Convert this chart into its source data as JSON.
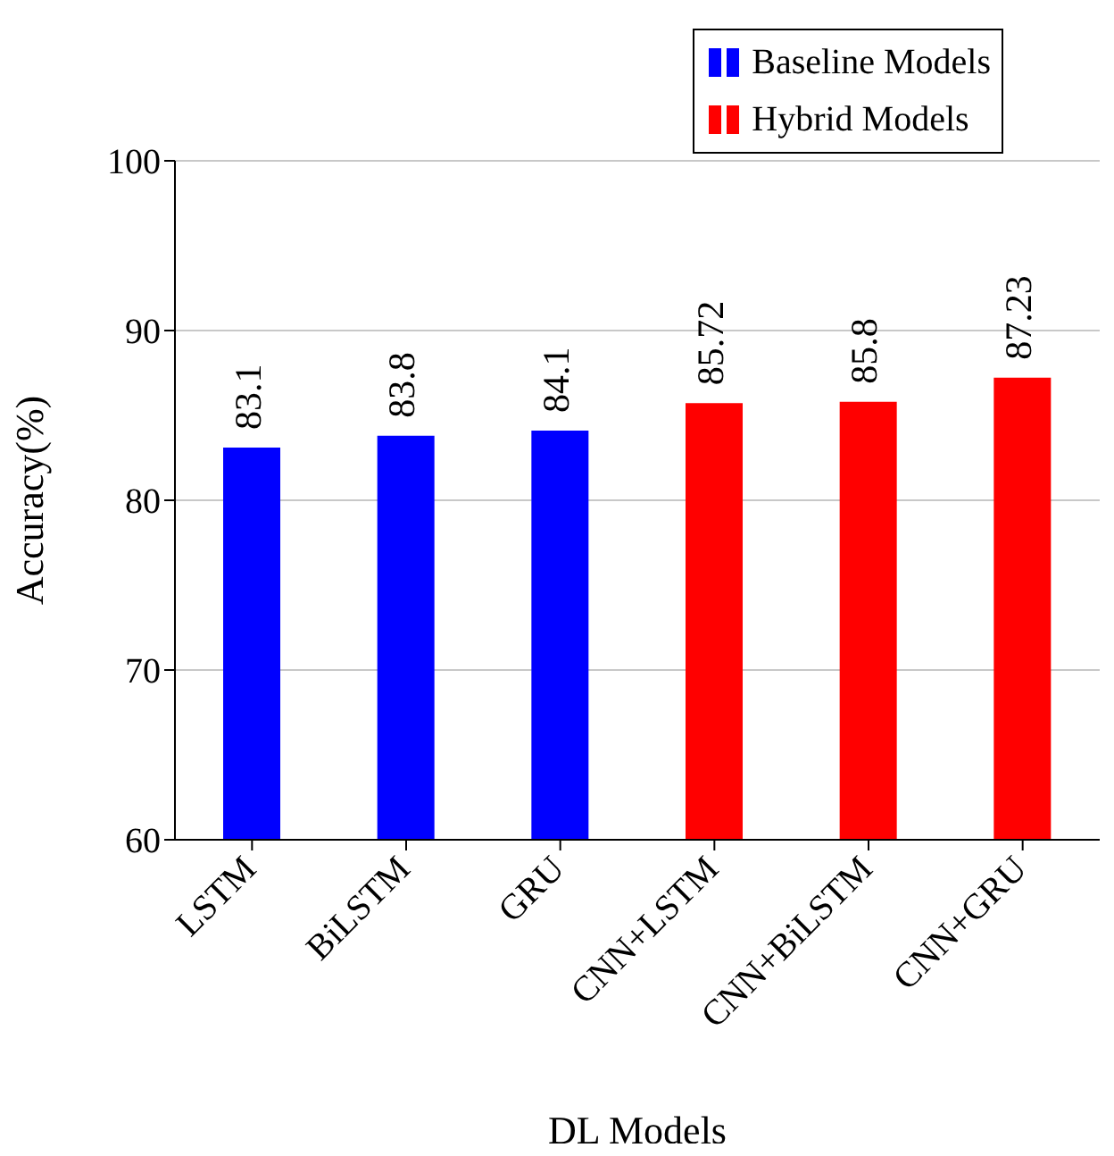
{
  "chart_data": {
    "type": "bar",
    "xlabel": "DL Models",
    "ylabel": "Accuracy(%)",
    "categories": [
      "LSTM",
      "BiLSTM",
      "GRU",
      "CNN+LSTM",
      "CNN+BiLSTM",
      "CNN+GRU"
    ],
    "series": [
      {
        "name": "Baseline Models",
        "color": "#0000ff",
        "values": [
          83.1,
          83.8,
          84.1,
          null,
          null,
          null
        ]
      },
      {
        "name": "Hybrid Models",
        "color": "#ff0000",
        "values": [
          null,
          null,
          null,
          85.72,
          85.8,
          87.23
        ]
      }
    ],
    "ylim": [
      60,
      100
    ],
    "yticks": [
      60,
      70,
      80,
      90,
      100
    ],
    "grid": "y",
    "legend": "top right",
    "data_labels": true
  }
}
